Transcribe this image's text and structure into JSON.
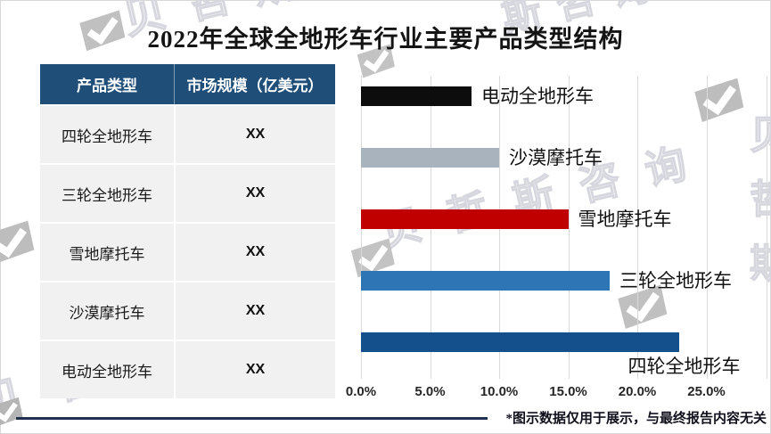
{
  "title": "2022年全球全地形车行业主要产品类型结构",
  "table": {
    "headers": [
      "产品类型",
      "市场规模（亿美元）"
    ],
    "rows": [
      {
        "type": "四轮全地形车",
        "value": "XX"
      },
      {
        "type": "三轮全地形车",
        "value": "XX"
      },
      {
        "type": "雪地摩托车",
        "value": "XX"
      },
      {
        "type": "沙漠摩托车",
        "value": "XX"
      },
      {
        "type": "电动全地形车",
        "value": "XX"
      }
    ]
  },
  "chart_data": {
    "type": "bar",
    "orientation": "horizontal",
    "title": "2022年全球全地形车行业主要产品类型结构",
    "categories": [
      "电动全地形车",
      "沙漠摩托车",
      "雪地摩托车",
      "三轮全地形车",
      "四轮全地形车"
    ],
    "values": [
      8,
      10,
      15,
      18,
      23
    ],
    "unit": "%",
    "colors": [
      "#0d0d0d",
      "#a9b3be",
      "#c00000",
      "#2e75b6",
      "#14508c"
    ],
    "x_ticks": [
      "0.0%",
      "5.0%",
      "10.0%",
      "15.0%",
      "20.0%",
      "25.0%"
    ],
    "xlim": [
      0,
      29.3
    ],
    "grid": true,
    "legend_position": "none",
    "label_style": "category names printed at bar ends"
  },
  "footnote": "*图示数据仅用于展示，与最终报告内容无关",
  "watermark": {
    "text": "贝哲斯咨询",
    "text_short1": "斯咨询",
    "text_short2": "贝哲斯"
  },
  "colors": {
    "table_header_bg": "#1f4e79",
    "table_header_text": "#ffffff",
    "table_row_bg": "#f1f1f1",
    "divider_line": "#1f3050",
    "gridline": "#d9d9d9"
  }
}
